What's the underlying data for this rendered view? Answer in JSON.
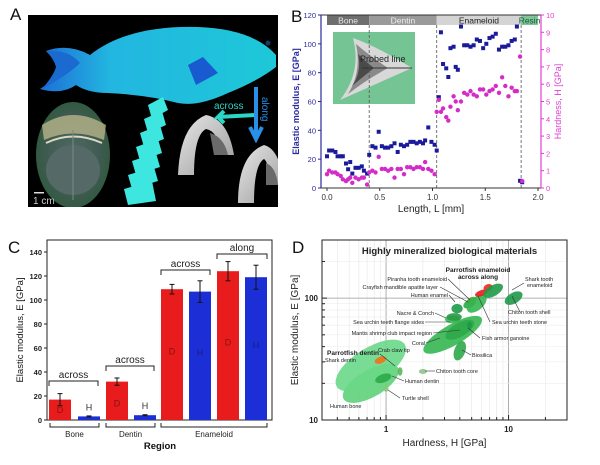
{
  "panels": {
    "A": {
      "letter": "A",
      "arrow_labels": {
        "across": "across",
        "along": "along"
      },
      "scale_bar": "1 cm",
      "colors": {
        "background": "#000000",
        "fish": "#1fb8d8",
        "teeth": "#3ee6e0",
        "arrow": "#2ad6c6",
        "along_arrow": "#2a8fe6"
      }
    },
    "B": {
      "letter": "B"
    },
    "C": {
      "letter": "C"
    },
    "D": {
      "letter": "D"
    }
  },
  "chart_data": [
    {
      "id": "B",
      "type": "scatter",
      "xlabel": "Length, L [mm]",
      "ylabel": "Elastic modulus, E [GPa]",
      "ylabel_right": "Hardness, H [GPa]",
      "xlim": [
        0.0,
        2.0
      ],
      "ylim": [
        0,
        120
      ],
      "ylim_right": [
        0,
        10
      ],
      "xticks": [
        "0.0",
        "0.5",
        "1.0",
        "1.5",
        "2.0"
      ],
      "yticks": [
        "0",
        "20",
        "40",
        "60",
        "80",
        "100",
        "120"
      ],
      "yticks_right": [
        "0",
        "1",
        "2",
        "3",
        "4",
        "5",
        "6",
        "7",
        "8",
        "9",
        "10"
      ],
      "regions": [
        {
          "label": "Bone",
          "from": 0.0,
          "to": 0.4,
          "color": "#6e6e6e",
          "text_color": "#e8e8e8"
        },
        {
          "label": "Dentin",
          "from": 0.4,
          "to": 1.04,
          "color": "#9a9a9a",
          "text_color": "#eeeeee"
        },
        {
          "label": "Enameloid",
          "from": 1.04,
          "to": 1.84,
          "color": "#d4d4d4",
          "text_color": "#222222"
        },
        {
          "label": "Resin",
          "from": 1.84,
          "to": 2.0,
          "color": "#7fc49a",
          "text_color": "#1a5a33"
        }
      ],
      "boundaries": [
        0.4,
        1.04,
        1.84
      ],
      "inset_label": "Probed line",
      "series": [
        {
          "name": "Elastic modulus, E",
          "axis": "left",
          "color": "#1a1a9a",
          "marker": "square",
          "x": [
            0.0,
            0.02,
            0.05,
            0.08,
            0.1,
            0.13,
            0.15,
            0.18,
            0.2,
            0.22,
            0.24,
            0.27,
            0.3,
            0.33,
            0.35,
            0.38,
            0.4,
            0.43,
            0.46,
            0.49,
            0.52,
            0.55,
            0.58,
            0.61,
            0.64,
            0.67,
            0.7,
            0.73,
            0.76,
            0.79,
            0.82,
            0.85,
            0.88,
            0.91,
            0.93,
            0.96,
            0.99,
            1.02,
            1.04,
            1.06,
            1.08,
            1.1,
            1.13,
            1.15,
            1.17,
            1.2,
            1.22,
            1.24,
            1.27,
            1.3,
            1.33,
            1.36,
            1.39,
            1.42,
            1.45,
            1.48,
            1.51,
            1.54,
            1.57,
            1.6,
            1.63,
            1.66,
            1.69,
            1.72,
            1.75,
            1.78,
            1.8,
            1.83,
            1.85
          ],
          "y": [
            22,
            26,
            26,
            25,
            22,
            22,
            22,
            17,
            13,
            18,
            10,
            14,
            14,
            15,
            12,
            10,
            23,
            29,
            28,
            39,
            29,
            28,
            28,
            29,
            31,
            25,
            30,
            29,
            30,
            32,
            32,
            31,
            32,
            31,
            33,
            42,
            32,
            30,
            26,
            63,
            108,
            86,
            83,
            77,
            97,
            98,
            84,
            82,
            112,
            99,
            99,
            98,
            99,
            103,
            102,
            97,
            100,
            104,
            105,
            107,
            96,
            98,
            98,
            99,
            102,
            103,
            112,
            5,
            4
          ],
          "y_note": "values approximate, read from plot"
        },
        {
          "name": "Hardness, H",
          "axis": "right",
          "color": "#d42cc8",
          "marker": "circle",
          "x": [
            0.0,
            0.02,
            0.05,
            0.08,
            0.1,
            0.13,
            0.15,
            0.18,
            0.2,
            0.22,
            0.24,
            0.27,
            0.3,
            0.33,
            0.35,
            0.38,
            0.4,
            0.43,
            0.46,
            0.49,
            0.52,
            0.55,
            0.58,
            0.61,
            0.64,
            0.67,
            0.7,
            0.73,
            0.76,
            0.79,
            0.82,
            0.85,
            0.88,
            0.91,
            0.93,
            0.96,
            0.99,
            1.02,
            1.04,
            1.06,
            1.08,
            1.1,
            1.13,
            1.15,
            1.17,
            1.2,
            1.22,
            1.24,
            1.27,
            1.3,
            1.33,
            1.36,
            1.39,
            1.42,
            1.45,
            1.48,
            1.51,
            1.54,
            1.57,
            1.6,
            1.63,
            1.66,
            1.69,
            1.72,
            1.75,
            1.78,
            1.8,
            1.83,
            1.85
          ],
          "y": [
            0.8,
            1.0,
            0.9,
            0.9,
            0.8,
            0.7,
            0.5,
            0.4,
            0.5,
            0.6,
            0.3,
            0.6,
            0.5,
            0.6,
            0.6,
            0.2,
            0.9,
            1.0,
            0.9,
            1.8,
            1.1,
            1.1,
            1.0,
            1.1,
            0.6,
            1.1,
            1.1,
            0.8,
            1.2,
            1.2,
            1.1,
            1.2,
            1.2,
            1.1,
            1.5,
            1.1,
            1.0,
            0.8,
            4.4,
            5.1,
            4.4,
            4.6,
            4.1,
            3.9,
            4.7,
            5.3,
            5.0,
            4.5,
            5.0,
            5.5,
            5.4,
            5.6,
            5.4,
            5.3,
            5.7,
            5.7,
            5.4,
            5.6,
            5.7,
            5.9,
            5.5,
            6.4,
            5.9,
            5.3,
            5.8,
            5.6,
            5.6,
            7.6,
            0.4
          ],
          "y_note": "values approximate, read from plot"
        }
      ]
    },
    {
      "id": "C",
      "type": "bar",
      "xlabel": "Region",
      "ylabel": "Elastic modulus, E [GPa]",
      "ylim": [
        0,
        150
      ],
      "yticks": [
        "0",
        "20",
        "40",
        "60",
        "80",
        "100",
        "120",
        "140"
      ],
      "groups": [
        {
          "label": "Bone",
          "brackets": [
            "across"
          ]
        },
        {
          "label": "Dentin",
          "brackets": [
            "across"
          ]
        },
        {
          "label": "Enameloid",
          "brackets": [
            "across",
            "along"
          ]
        }
      ],
      "bars": [
        {
          "group": "Bone",
          "orientation": "across",
          "label": "D",
          "value": 17,
          "error": 5,
          "color": "#e81c1c"
        },
        {
          "group": "Bone",
          "orientation": "across",
          "label": "H",
          "value": 3,
          "error": 0.4,
          "color": "#1c2fd6"
        },
        {
          "group": "Dentin",
          "orientation": "across",
          "label": "D",
          "value": 32,
          "error": 3,
          "color": "#e81c1c"
        },
        {
          "group": "Dentin",
          "orientation": "across",
          "label": "H",
          "value": 4,
          "error": 0.4,
          "color": "#1c2fd6"
        },
        {
          "group": "Enameloid",
          "orientation": "across",
          "label": "D",
          "value": 109,
          "error": 4,
          "color": "#e81c1c"
        },
        {
          "group": "Enameloid",
          "orientation": "across",
          "label": "H",
          "value": 107,
          "error": 9,
          "color": "#1c2fd6"
        },
        {
          "group": "Enameloid",
          "orientation": "along",
          "label": "D",
          "value": 124,
          "error": 8,
          "color": "#e81c1c"
        },
        {
          "group": "Enameloid",
          "orientation": "along",
          "label": "H",
          "value": 119,
          "error": 10,
          "color": "#1c2fd6"
        }
      ]
    },
    {
      "id": "D",
      "type": "scatter",
      "subtype": "ashby-ellipses",
      "title": "Highly mineralized biological materials",
      "xlabel": "Hardness, H [GPa]",
      "ylabel": "Elastic modulus, E [GPa]",
      "xscale": "log",
      "yscale": "log",
      "xlim": [
        0.3,
        30
      ],
      "ylim": [
        10,
        300
      ],
      "xticks": [
        "1",
        "10"
      ],
      "yticks": [
        "10",
        "100"
      ],
      "grid": true,
      "materials": [
        {
          "name": "Human bone",
          "h": 0.75,
          "e": 20,
          "h_span": [
            0.4,
            1.3
          ],
          "e_span": [
            14,
            32
          ],
          "angle": -30,
          "color": "#5fd07a"
        },
        {
          "name": "Shark dentin",
          "h": 0.75,
          "e": 28,
          "h_span": [
            0.4,
            1.8
          ],
          "e_span": [
            15,
            45
          ],
          "angle": -32,
          "color": "#6ad888"
        },
        {
          "name": "Parrotfish dentin",
          "h": 0.9,
          "e": 31,
          "h_span": [
            0.8,
            1.0
          ],
          "e_span": [
            29,
            33
          ],
          "angle": -20,
          "color": "#f07018",
          "bold": true
        },
        {
          "name": "Crab claw tip",
          "h": 1.3,
          "e": 25,
          "h_span": [
            1.25,
            1.35
          ],
          "e_span": [
            23,
            27
          ],
          "angle": 0,
          "color": "#58b85a"
        },
        {
          "name": "Human dentin",
          "h": 0.95,
          "e": 22,
          "h_span": [
            0.8,
            1.1
          ],
          "e_span": [
            20,
            24
          ],
          "angle": -20,
          "color": "#2caa48"
        },
        {
          "name": "Turtle shell",
          "h": 1.0,
          "e": 18,
          "h_span": [
            0.97,
            1.05
          ],
          "e_span": [
            17,
            19
          ],
          "angle": 0,
          "color": "#8ac87a"
        },
        {
          "name": "Chiton tooth core",
          "h": 2.0,
          "e": 25,
          "h_span": [
            1.85,
            2.15
          ],
          "e_span": [
            24,
            26
          ],
          "angle": 0,
          "color": "#8cc48c"
        },
        {
          "name": "Coral",
          "h": 3.5,
          "e": 50,
          "h_span": [
            2.0,
            7.0
          ],
          "e_span": [
            38,
            70
          ],
          "angle": -30,
          "color": "#34b650"
        },
        {
          "name": "Biosilica",
          "h": 4.0,
          "e": 37,
          "h_span": [
            3.5,
            4.6
          ],
          "e_span": [
            30,
            44
          ],
          "angle": -70,
          "color": "#2ea84a"
        },
        {
          "name": "Mantis shrimp club impact region",
          "h": 4.0,
          "e": 55,
          "h_span": [
            3.0,
            5.5
          ],
          "e_span": [
            45,
            65
          ],
          "angle": -30,
          "color": "#2ea84a"
        },
        {
          "name": "Sea urchin teeth flange sides",
          "h": 3.5,
          "e": 67,
          "h_span": [
            3.0,
            4.0
          ],
          "e_span": [
            62,
            72
          ],
          "angle": 0,
          "color": "#34b650"
        },
        {
          "name": "Nacre & Conch",
          "h": 3.6,
          "e": 70,
          "h_span": [
            3.0,
            4.0
          ],
          "e_span": [
            64,
            74
          ],
          "angle": 0,
          "color": "#2a9a44"
        },
        {
          "name": "Fish armor ganoine",
          "h": 4.8,
          "e": 60,
          "h_span": [
            4.6,
            5.0
          ],
          "e_span": [
            56,
            64
          ],
          "angle": 0,
          "color": "#1e9a4a"
        },
        {
          "name": "Human enamel",
          "h": 3.8,
          "e": 82,
          "h_span": [
            3.4,
            4.2
          ],
          "e_span": [
            75,
            90
          ],
          "angle": 0,
          "color": "#1e9a4a"
        },
        {
          "name": "Crayfish mandible apatite layer",
          "h": 4.8,
          "e": 90,
          "h_span": [
            4.2,
            5.4
          ],
          "e_span": [
            82,
            98
          ],
          "angle": -30,
          "color": "#2aa848"
        },
        {
          "name": "Piranha tooth enameloid",
          "h": 5.0,
          "e": 95,
          "h_span": [
            4.5,
            5.5
          ],
          "e_span": [
            88,
            102
          ],
          "angle": -30,
          "color": "#48a838"
        },
        {
          "name": "Sea urchin teeth stone",
          "h": 5.5,
          "e": 90,
          "h_span": [
            4.5,
            7.0
          ],
          "e_span": [
            75,
            105
          ],
          "angle": -40,
          "color": "#34b650"
        },
        {
          "name": "Parrotfish enameloid across",
          "h": 6.0,
          "e": 110,
          "h_span": [
            5.3,
            6.8
          ],
          "e_span": [
            104,
            115
          ],
          "angle": -20,
          "color": "#e81c1c",
          "bold": true
        },
        {
          "name": "Parrotfish enameloid along",
          "h": 6.8,
          "e": 122,
          "h_span": [
            6.2,
            7.4
          ],
          "e_span": [
            114,
            130
          ],
          "angle": -20,
          "color": "#e82c1c",
          "bold": true
        },
        {
          "name": "Shark tooth enameloid",
          "h": 7.5,
          "e": 115,
          "h_span": [
            6.0,
            9.0
          ],
          "e_span": [
            100,
            130
          ],
          "angle": -30,
          "color": "#1e9a4a"
        },
        {
          "name": "Chiton tooth shell",
          "h": 11,
          "e": 100,
          "h_span": [
            9.0,
            13.0
          ],
          "e_span": [
            88,
            115
          ],
          "angle": -30,
          "color": "#1e9a4a"
        }
      ],
      "labels": {
        "parrotfish_enameloid": "Parrotfish enameloid",
        "across": "across",
        "along": "along",
        "shark_tooth_enameloid_l1": "Shark tooth",
        "shark_tooth_enameloid_l2": "enameloid",
        "piranha": "Piranha tooth enameloid",
        "crayfish": "Crayfish mandible apatite layer",
        "human_enamel": "Human enamel",
        "nacre": "Nacre & Conch",
        "sea_urchin_flange": "Sea urchin teeth flange sides",
        "mantis": "Mantis shrimp club impact region",
        "coral": "Coral",
        "parrotfish_dentin": "Parrotfish dentin",
        "shark_dentin": "Shark dentin",
        "crab_claw": "Crab claw tip",
        "human_dentin": "Human dentin",
        "turtle_shell": "Turtle shell",
        "human_bone": "Human bone",
        "chiton_core": "Chiton tooth core",
        "biosilica": "Biosilica",
        "fish_armor": "Fish armor ganoine",
        "sea_urchin_stone": "Sea urchin teeth stone",
        "chiton_shell": "Chiton tooth shell"
      }
    }
  ]
}
